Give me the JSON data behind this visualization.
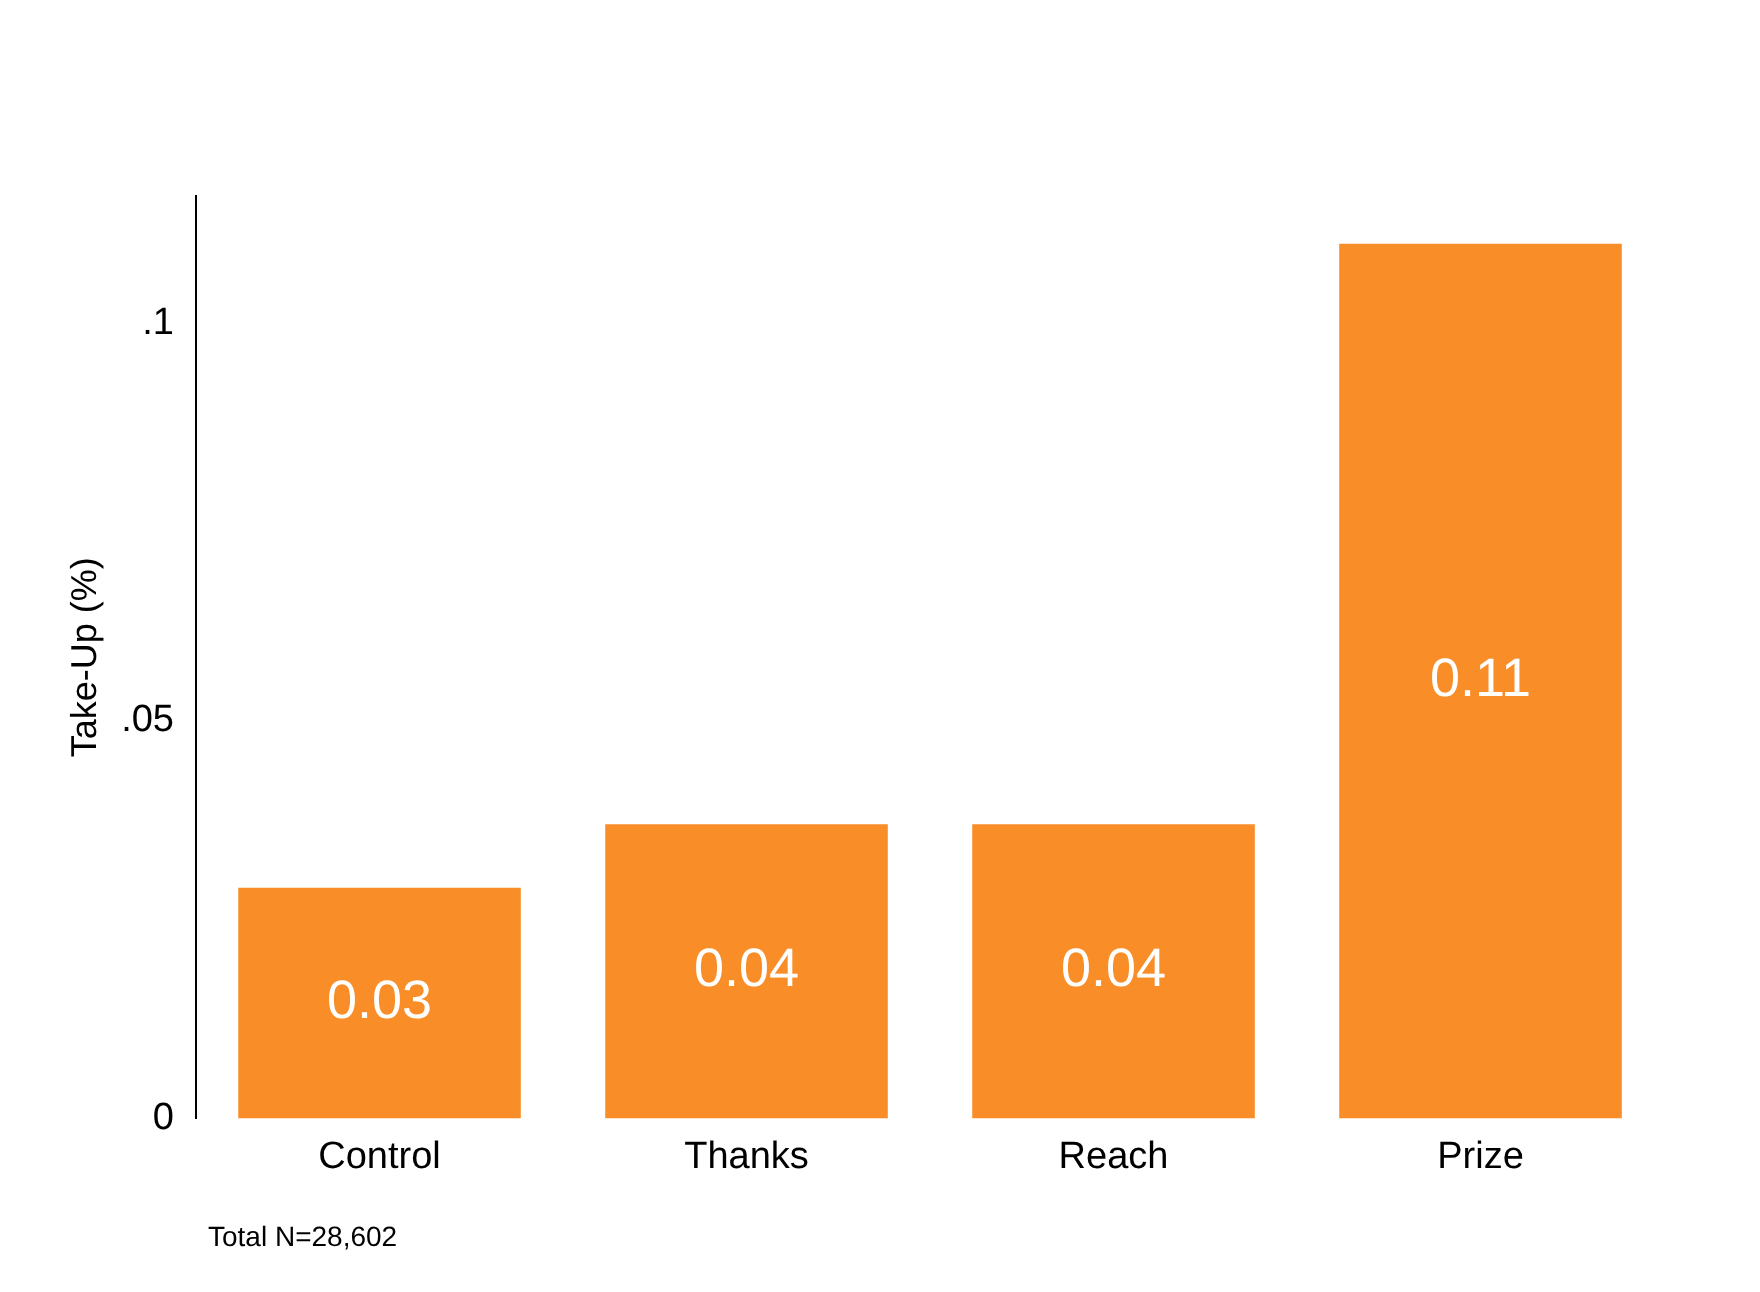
{
  "chart_data": {
    "type": "bar",
    "ylabel": "Take-Up (%)",
    "categories": [
      "Control",
      "Thanks",
      "Reach",
      "Prize"
    ],
    "values": [
      0.029,
      0.037,
      0.037,
      0.11
    ],
    "value_labels": [
      "0.03",
      "0.04",
      "0.04",
      "0.11"
    ],
    "color": "#f98e29",
    "ylim": [
      0,
      0.116
    ],
    "yticks": [
      0,
      {
        "value": 0.05,
        "label": ".05"
      },
      {
        "value": 0.1,
        "label": ".1"
      }
    ],
    "annotations": [
      "Total N=28,602"
    ],
    "grid": false,
    "legend": false
  }
}
